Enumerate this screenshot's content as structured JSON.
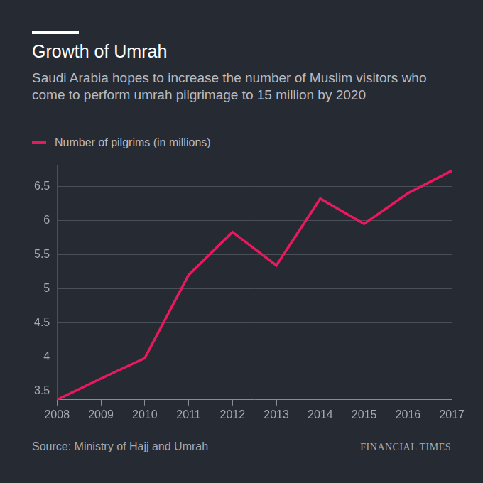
{
  "chart_data": {
    "type": "line",
    "title": "Growth of Umrah",
    "subtitle": "Saudi Arabia hopes to increase the number of Muslim visitors who come to perform umrah pilgrimage to 15 million by 2020",
    "categories": [
      "2008",
      "2009",
      "2010",
      "2011",
      "2012",
      "2013",
      "2014",
      "2015",
      "2016",
      "2017"
    ],
    "series": [
      {
        "name": "Number of pilgrims (in millions)",
        "color": "#e8195e",
        "values": [
          3.37,
          3.68,
          3.98,
          5.2,
          5.83,
          5.34,
          6.32,
          5.95,
          6.4,
          6.73
        ]
      }
    ],
    "ylim": [
      3.37,
      6.8
    ],
    "yticks": [
      3.5,
      4,
      4.5,
      5,
      5.5,
      6,
      6.5
    ],
    "grid": true,
    "legend": "top-left",
    "source": "Source: Ministry of Hajj and Umrah",
    "publisher": "FINANCIAL TIMES"
  }
}
